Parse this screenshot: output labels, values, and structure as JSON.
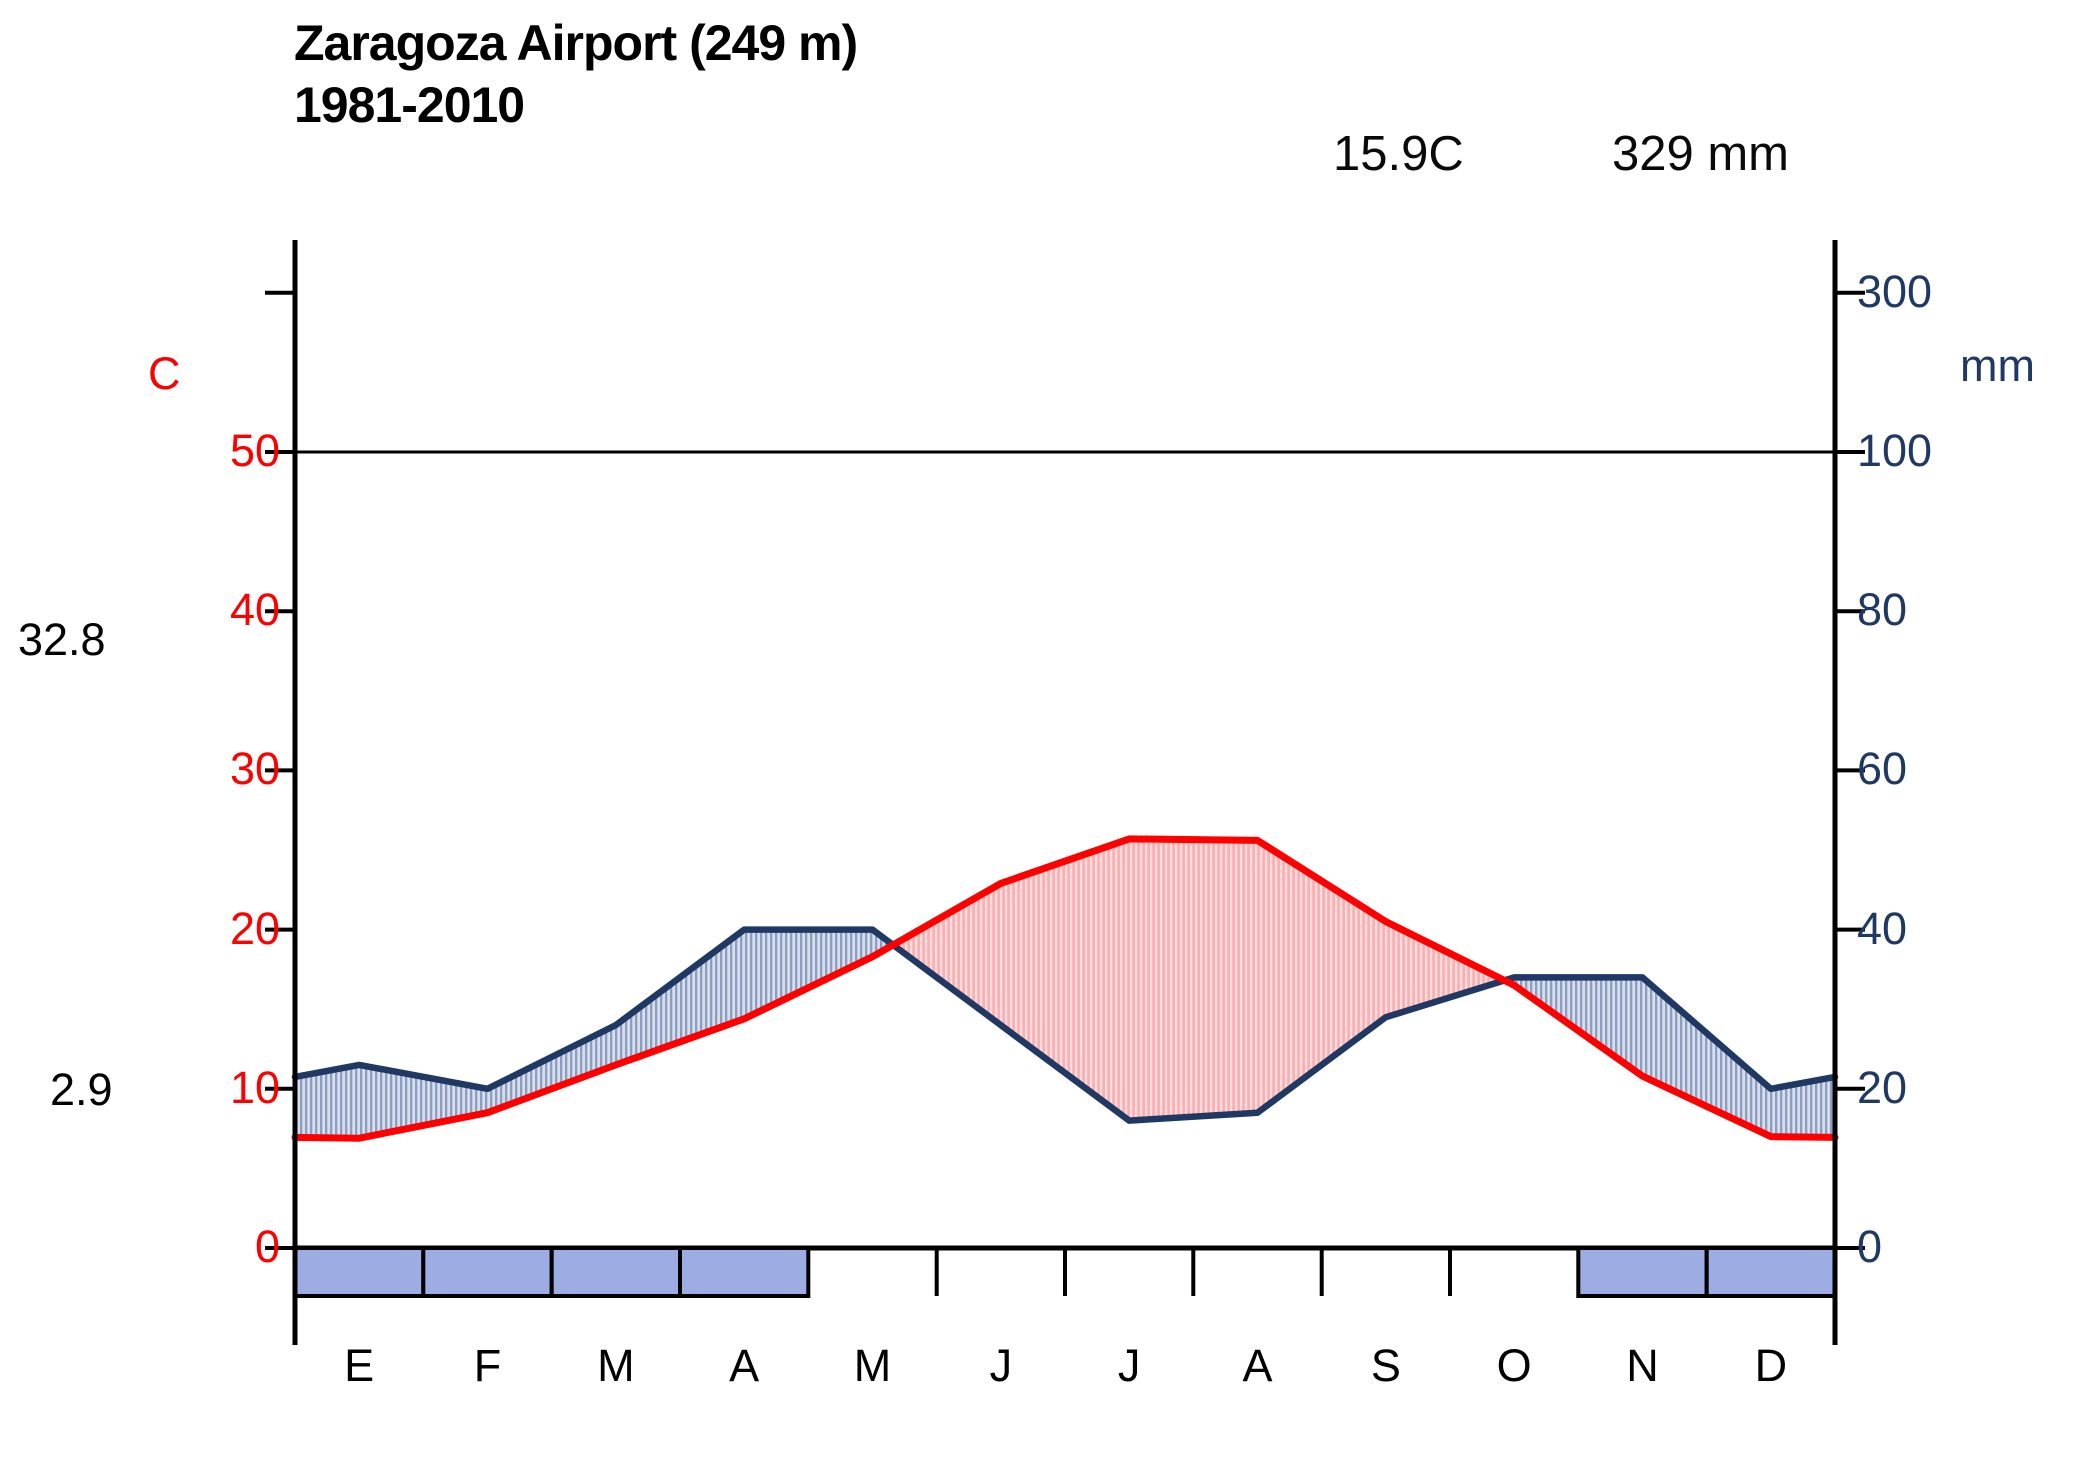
{
  "title": "Zaragoza Airport (249 m)",
  "subtitle": "1981-2010",
  "annual": {
    "temperature": "15.9C",
    "precipitation": "329 mm"
  },
  "axes": {
    "left_unit": "C",
    "right_unit": "mm",
    "extreme_max": "32.8",
    "extreme_min": "2.9"
  },
  "colors": {
    "temperature_line": "#fe0000",
    "precipitation_line": "#1f3864",
    "humid_fill_bg": "#d8dfeb",
    "humid_hatch": "#8b9dc1",
    "dry_fill_bg": "#f8b2b4",
    "dry_hatch": "#fcdcdc",
    "frost_bar": "#9bade2",
    "axis": "#000000",
    "temp_label": "#fe0000",
    "precip_label": "#1f3864"
  },
  "chart_data": {
    "type": "line",
    "subtype": "walter-lieth-climate-diagram",
    "title": "Zaragoza Airport (249 m) 1981-2010",
    "categories": [
      "E",
      "F",
      "M",
      "A",
      "M",
      "J",
      "J",
      "A",
      "S",
      "O",
      "N",
      "D"
    ],
    "series": [
      {
        "name": "mean_temperature_C",
        "color": "#fe0000",
        "values": [
          6.9,
          8.5,
          11.5,
          14.4,
          18.3,
          22.9,
          25.7,
          25.6,
          20.5,
          16.5,
          10.8,
          7.0
        ]
      },
      {
        "name": "precipitation_mm",
        "color": "#1f3864",
        "values": [
          23,
          20,
          28,
          40,
          40,
          28,
          16,
          17,
          29,
          34,
          34,
          20
        ]
      }
    ],
    "frost_months": [
      true,
      true,
      true,
      true,
      false,
      false,
      false,
      false,
      false,
      false,
      true,
      true
    ],
    "temp_axis": {
      "unit": "C",
      "ticks": [
        50,
        40,
        30,
        20,
        10,
        0
      ]
    },
    "precip_axis": {
      "unit": "mm",
      "ticks": [
        300,
        100,
        80,
        60,
        40,
        20,
        0
      ],
      "scale_break": 100,
      "compression_above_break": 10
    },
    "annual_mean_temperature": "15.9C",
    "annual_precipitation": "329 mm",
    "humid_area": "precipitation_curve_above_temperature_curve (hatched blue)",
    "dry_area": "temperature_curve_above_precipitation_curve (hatched red)",
    "legend_position": "none",
    "grid": "off"
  }
}
